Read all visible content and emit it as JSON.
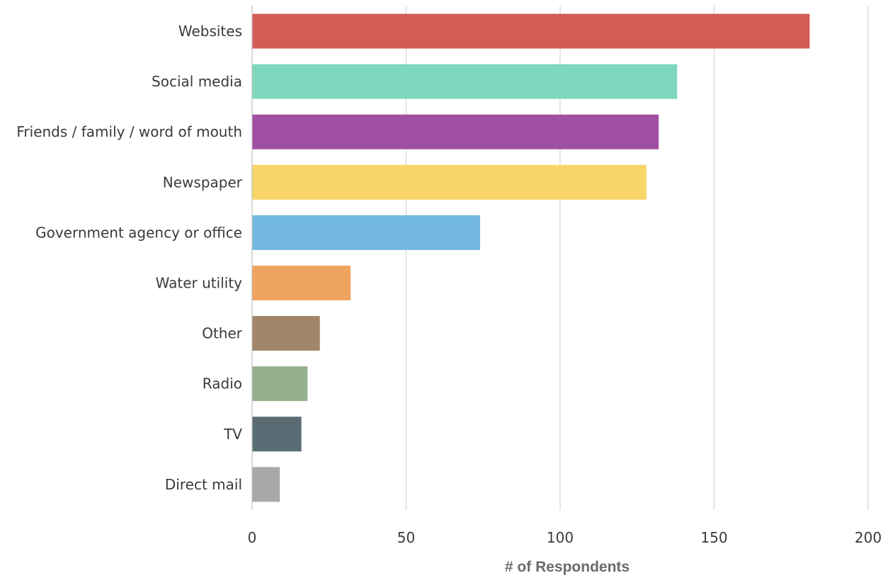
{
  "chart_data": {
    "type": "bar",
    "orientation": "horizontal",
    "categories": [
      "Websites",
      "Social media",
      "Friends / family / word of mouth",
      "Newspaper",
      "Government agency or office",
      "Water utility",
      "Other",
      "Radio",
      "TV",
      "Direct mail"
    ],
    "values": [
      181,
      138,
      132,
      128,
      74,
      32,
      22,
      18,
      16,
      9
    ],
    "colors": [
      "#d45b56",
      "#7fd7bf",
      "#a050a3",
      "#f8d566",
      "#72b8e1",
      "#efa55f",
      "#a28569",
      "#97b08c",
      "#5a6c73",
      "#a8a8a8"
    ],
    "title": "",
    "xlabel": "# of Respondents",
    "ylabel": "",
    "xlim": [
      0,
      200
    ],
    "xticks": [
      0,
      50,
      100,
      150,
      200
    ],
    "grid": true,
    "legend": "none"
  }
}
